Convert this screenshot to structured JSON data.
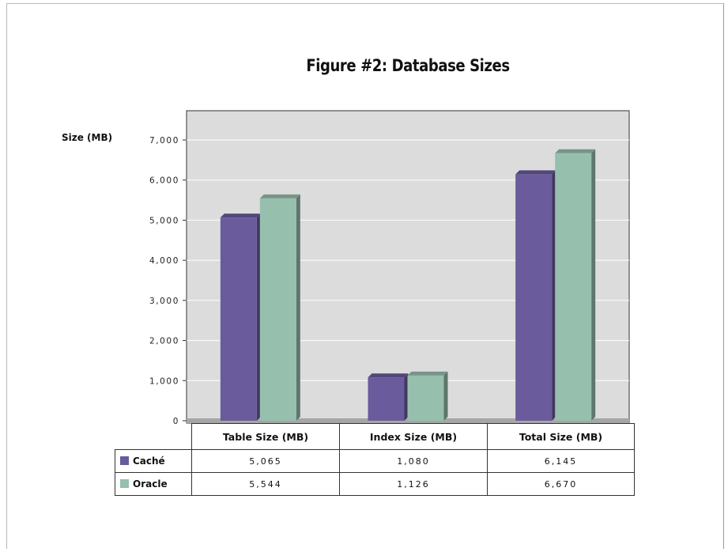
{
  "chart_data": {
    "type": "bar",
    "title": "Figure #2: Database Sizes",
    "ylabel": "Size (MB)",
    "xlabel": "",
    "categories": [
      "Table Size (MB)",
      "Index Size (MB)",
      "Total Size (MB)"
    ],
    "series": [
      {
        "name": "Caché",
        "values": [
          5065,
          1080,
          6145
        ],
        "labels": [
          "5,065",
          "1,080",
          "6,145"
        ],
        "color": "#6a5b9c"
      },
      {
        "name": "Oracle",
        "values": [
          5544,
          1126,
          6670
        ],
        "labels": [
          "5,544",
          "1,126",
          "6,670"
        ],
        "color": "#97bfae"
      }
    ],
    "ylim": [
      0,
      7000
    ],
    "yticks": [
      0,
      1000,
      2000,
      3000,
      4000,
      5000,
      6000,
      7000
    ],
    "ytick_labels": [
      "0",
      "1,000",
      "2,000",
      "3,000",
      "4,000",
      "5,000",
      "6,000",
      "7,000"
    ],
    "grid": true,
    "legend": "data table below chart",
    "colors": {
      "plot_background": "#dcdcdc",
      "floor": "#a6a6a6"
    }
  }
}
